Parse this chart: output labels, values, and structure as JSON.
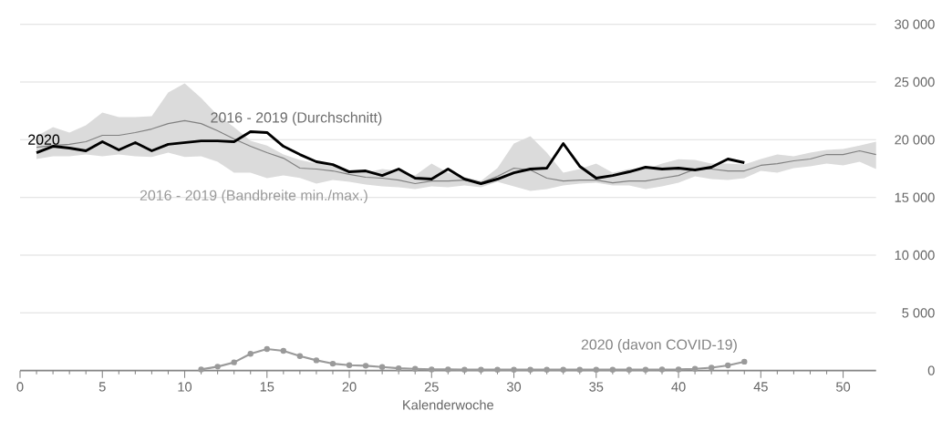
{
  "chart_data": {
    "type": "line",
    "xlabel": "Kalenderwoche",
    "x": [
      1,
      2,
      3,
      4,
      5,
      6,
      7,
      8,
      9,
      10,
      11,
      12,
      13,
      14,
      15,
      16,
      17,
      18,
      19,
      20,
      21,
      22,
      23,
      24,
      25,
      26,
      27,
      28,
      29,
      30,
      31,
      32,
      33,
      34,
      35,
      36,
      37,
      38,
      39,
      40,
      41,
      42,
      43,
      44,
      45,
      46,
      47,
      48,
      49,
      50,
      51,
      52
    ],
    "series": [
      {
        "name": "2016 - 2019 (Durchschnitt)",
        "color": "#808080",
        "values": [
          19350,
          19500,
          19600,
          19830,
          20380,
          20380,
          20620,
          20930,
          21400,
          21650,
          21400,
          20780,
          20070,
          19430,
          18880,
          18400,
          17540,
          17460,
          17300,
          16990,
          16750,
          16670,
          16510,
          16200,
          16430,
          16430,
          16510,
          16270,
          16830,
          17540,
          17380,
          16670,
          16430,
          16510,
          16510,
          16270,
          16430,
          16430,
          16670,
          16900,
          17460,
          17460,
          17300,
          17300,
          17780,
          17930,
          18170,
          18330,
          18720,
          18720,
          19040,
          18720
        ],
        "lower": [
          18330,
          18560,
          18560,
          18720,
          18560,
          18720,
          18560,
          18500,
          18880,
          18500,
          18560,
          18090,
          17140,
          17140,
          16670,
          16900,
          16700,
          16200,
          16510,
          16350,
          16120,
          15960,
          15880,
          15720,
          15960,
          15880,
          16040,
          15880,
          16350,
          15960,
          15560,
          15720,
          16040,
          16200,
          16270,
          16040,
          16040,
          15720,
          15960,
          16270,
          16830,
          16590,
          16510,
          16670,
          17300,
          17140,
          17540,
          17700,
          17930,
          17770,
          18090,
          17460
        ],
        "upper": [
          20300,
          21090,
          20620,
          21250,
          22360,
          21960,
          21960,
          22040,
          24100,
          24880,
          23620,
          22120,
          21090,
          19900,
          19500,
          18720,
          18250,
          17930,
          17930,
          17300,
          17140,
          17460,
          17300,
          16900,
          17930,
          17140,
          16750,
          16430,
          17540,
          19670,
          20300,
          18880,
          17140,
          17460,
          17930,
          17140,
          17460,
          17460,
          17930,
          18300,
          18250,
          17930,
          17930,
          17850,
          18330,
          18720,
          18560,
          18880,
          19120,
          19200,
          19500,
          19830
        ]
      },
      {
        "name": "2020",
        "color": "#000000",
        "values": [
          18880,
          19430,
          19280,
          19040,
          19830,
          19120,
          19750,
          19040,
          19600,
          19750,
          19900,
          19900,
          19830,
          20700,
          20620,
          19430,
          18720,
          18090,
          17850,
          17220,
          17300,
          16900,
          17460,
          16670,
          16590,
          17460,
          16590,
          16200,
          16590,
          17140,
          17460,
          17540,
          19670,
          17700,
          16670,
          16900,
          17220,
          17620,
          17460,
          17540,
          17380,
          17620,
          18330,
          18010,
          null,
          null,
          null,
          null,
          null,
          null,
          null,
          null
        ]
      },
      {
        "name": "2020 (davon COVID-19)",
        "color": "#9a9a9a",
        "marker": "circle",
        "values": [
          null,
          null,
          null,
          null,
          null,
          null,
          null,
          null,
          null,
          null,
          100,
          340,
          710,
          1450,
          1870,
          1710,
          1260,
          890,
          600,
          470,
          420,
          310,
          200,
          150,
          100,
          100,
          80,
          80,
          80,
          80,
          80,
          80,
          80,
          80,
          80,
          80,
          80,
          80,
          90,
          100,
          150,
          250,
          450,
          770,
          null,
          null,
          null,
          null,
          null,
          null,
          null,
          null
        ]
      }
    ],
    "annotations": [
      "2016 - 2019 (Bandbreite min./max.)"
    ],
    "xlim": [
      0,
      52
    ],
    "xticks": [
      0,
      5,
      10,
      15,
      20,
      25,
      30,
      35,
      40,
      45,
      50
    ],
    "ylim": [
      0,
      30000
    ],
    "yticks": [
      {
        "value": 0,
        "label": "0"
      },
      {
        "value": 5000,
        "label": "5 000"
      },
      {
        "value": 10000,
        "label": "10 000"
      },
      {
        "value": 15000,
        "label": "15 000"
      },
      {
        "value": 20000,
        "label": "20 000"
      },
      {
        "value": 25000,
        "label": "25 000"
      },
      {
        "value": 30000,
        "label": "30 000"
      }
    ],
    "grid": "y"
  }
}
